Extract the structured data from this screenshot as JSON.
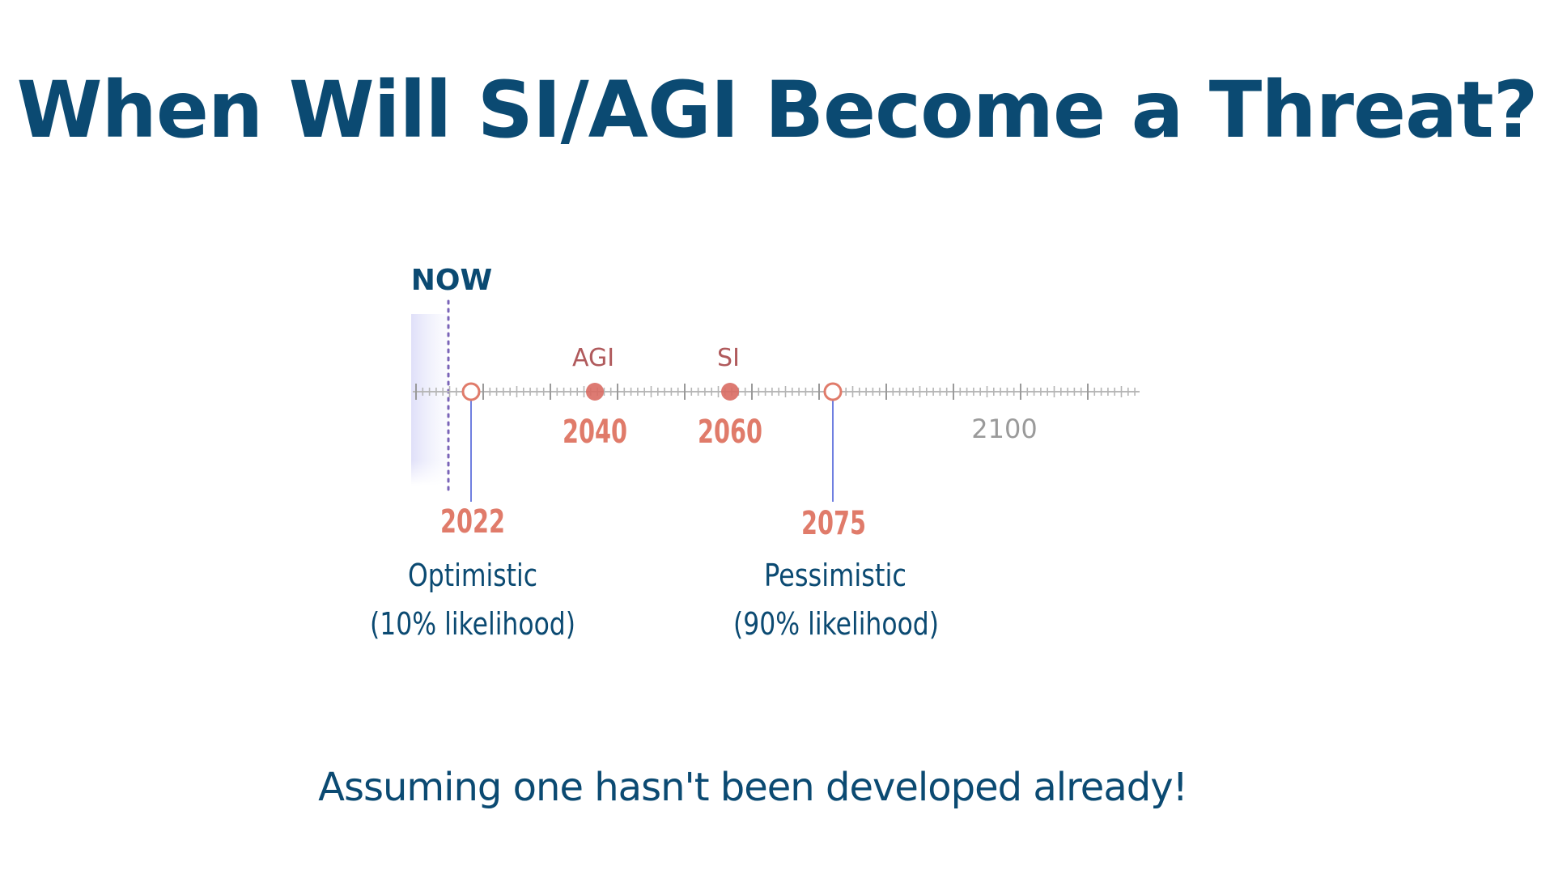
{
  "title": "When Will SI/AGI Become a Threat?",
  "footer": "Assuming one hasn't been developed already!",
  "timeline": {
    "now_label": "NOW",
    "axis_label": "2100",
    "accent_color": "#e07b6a",
    "point_color": "#d96c63",
    "milestones": [
      {
        "label": "AGI",
        "year": "2040"
      },
      {
        "label": "SI",
        "year": "2060"
      }
    ],
    "scenarios": [
      {
        "year": "2022",
        "name": "Optimistic",
        "likelihood": "(10% likelihood)"
      },
      {
        "year": "2075",
        "name": "Pessimistic",
        "likelihood": "(90% likelihood)"
      }
    ]
  }
}
